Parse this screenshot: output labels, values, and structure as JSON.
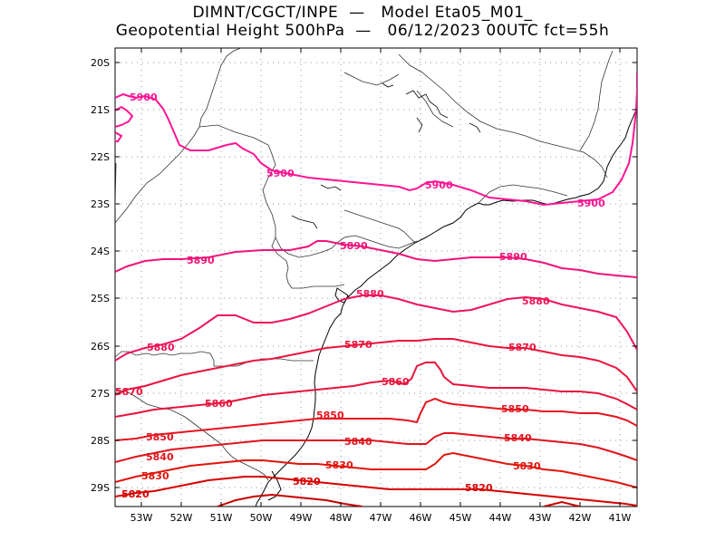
{
  "title": {
    "line1": "DIMNT/CGCT/INPE  —   Model Eta05_M01_",
    "line2": "Geopotential Height 500hPa  —   06/12/2023 00UTC fct=55h"
  },
  "lat_labels": [
    "20S",
    "21S",
    "22S",
    "23S",
    "24S",
    "25S",
    "26S",
    "27S",
    "28S",
    "29S"
  ],
  "lon_labels": [
    "53W",
    "52W",
    "51W",
    "50W",
    "49W",
    "48W",
    "47W",
    "46W",
    "45W",
    "44W",
    "43W",
    "42W",
    "41W"
  ],
  "contours": [
    {
      "label": "5900",
      "color": "#ff1493"
    },
    {
      "label": "5890",
      "color": "#f01478"
    },
    {
      "label": "5880",
      "color": "#f0145a"
    },
    {
      "label": "5870",
      "color": "#eb143c"
    },
    {
      "label": "5860",
      "color": "#e6143c"
    },
    {
      "label": "5850",
      "color": "#e6141e"
    },
    {
      "label": "5840",
      "color": "#e0141e"
    },
    {
      "label": "5830",
      "color": "#e0140a"
    },
    {
      "label": "5820",
      "color": "#d70000"
    }
  ],
  "colors": {
    "grid": "#999999",
    "coast": "#000000",
    "border": "#333333"
  }
}
